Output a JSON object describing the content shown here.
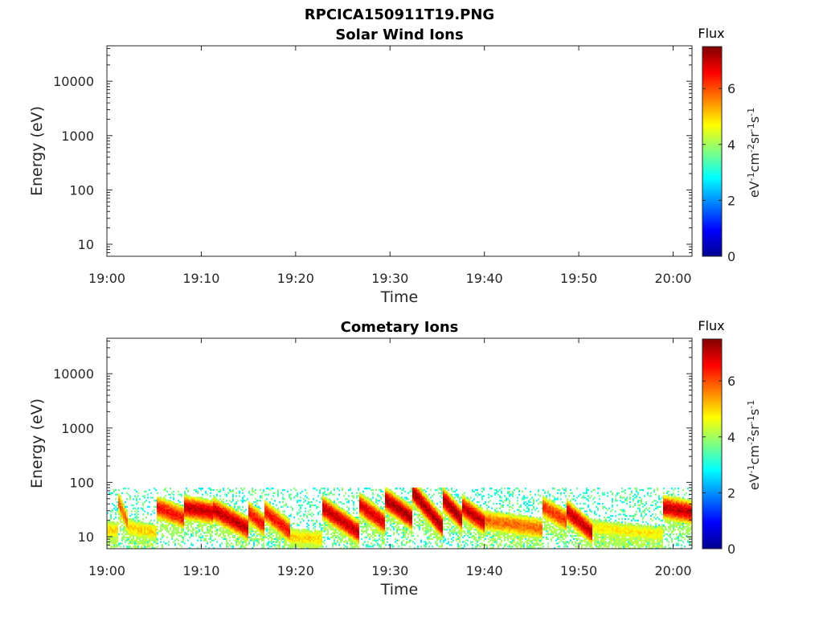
{
  "figure": {
    "title": "RPCICA150911T19.PNG"
  },
  "colors": {
    "background": "#ffffff",
    "axis": "#262626",
    "colormap": [
      "#00008f",
      "#0000ff",
      "#0080ff",
      "#00ffff",
      "#80ff80",
      "#ffff00",
      "#ff8000",
      "#ff0000",
      "#800000"
    ]
  },
  "chart_data": [
    {
      "type": "heatmap",
      "title": "Solar Wind Ions",
      "xlabel": "Time",
      "ylabel": "Energy (eV)",
      "x_range": [
        "19:00",
        "20:02"
      ],
      "x_ticks": [
        "19:00",
        "19:10",
        "19:20",
        "19:30",
        "19:40",
        "19:50",
        "20:00"
      ],
      "y_scale": "log",
      "y_range": [
        6,
        45000
      ],
      "y_ticks": [
        "10",
        "100",
        "1000",
        "10000"
      ],
      "colorbar": {
        "title": "Flux",
        "label_parts": [
          "eV",
          "-1",
          "cm",
          "-2",
          "sr",
          "-1",
          "s",
          "-1"
        ],
        "range": [
          0,
          7.5
        ],
        "ticks": [
          "0",
          "2",
          "4",
          "6"
        ]
      },
      "segments": []
    },
    {
      "type": "heatmap",
      "title": "Cometary Ions",
      "xlabel": "Time",
      "ylabel": "Energy (eV)",
      "x_range": [
        "19:00",
        "20:02"
      ],
      "x_ticks": [
        "19:00",
        "19:10",
        "19:20",
        "19:30",
        "19:40",
        "19:50",
        "20:00"
      ],
      "y_scale": "log",
      "y_range": [
        6,
        45000
      ],
      "y_ticks": [
        "10",
        "100",
        "1000",
        "10000"
      ],
      "colorbar": {
        "title": "Flux",
        "label_parts": [
          "eV",
          "-1",
          "cm",
          "-2",
          "sr",
          "-1",
          "s",
          "-1"
        ],
        "range": [
          0,
          7.5
        ],
        "ticks": [
          "0",
          "2",
          "4",
          "6"
        ]
      },
      "noise_upper_energy_ev": 80,
      "segments": [
        {
          "start": 0.0,
          "end": 1.2,
          "peak_start_ev": 13,
          "peak_end_ev": 13,
          "peak_flux": 5.0
        },
        {
          "start": 1.2,
          "end": 2.2,
          "peak_start_ev": 45,
          "peak_end_ev": 18,
          "peak_flux": 5.8
        },
        {
          "start": 2.2,
          "end": 5.3,
          "peak_start_ev": 15,
          "peak_end_ev": 12,
          "peak_flux": 5.0
        },
        {
          "start": 5.3,
          "end": 8.2,
          "peak_start_ev": 35,
          "peak_end_ev": 22,
          "peak_flux": 6.5
        },
        {
          "start": 8.2,
          "end": 11.2,
          "peak_start_ev": 35,
          "peak_end_ev": 28,
          "peak_flux": 7.0
        },
        {
          "start": 11.2,
          "end": 15.0,
          "peak_start_ev": 32,
          "peak_end_ev": 14,
          "peak_flux": 7.0
        },
        {
          "start": 15.0,
          "end": 16.7,
          "peak_start_ev": 28,
          "peak_end_ev": 16,
          "peak_flux": 6.5
        },
        {
          "start": 16.7,
          "end": 19.5,
          "peak_start_ev": 30,
          "peak_end_ev": 12,
          "peak_flux": 6.5
        },
        {
          "start": 19.5,
          "end": 22.8,
          "peak_start_ev": 10,
          "peak_end_ev": 9,
          "peak_flux": 5.0
        },
        {
          "start": 22.8,
          "end": 26.7,
          "peak_start_ev": 35,
          "peak_end_ev": 12,
          "peak_flux": 7.0
        },
        {
          "start": 26.7,
          "end": 29.4,
          "peak_start_ev": 40,
          "peak_end_ev": 18,
          "peak_flux": 6.8
        },
        {
          "start": 29.4,
          "end": 32.3,
          "peak_start_ev": 50,
          "peak_end_ev": 22,
          "peak_flux": 7.2
        },
        {
          "start": 32.3,
          "end": 35.6,
          "peak_start_ev": 70,
          "peak_end_ev": 15,
          "peak_flux": 7.2
        },
        {
          "start": 35.6,
          "end": 37.7,
          "peak_start_ev": 50,
          "peak_end_ev": 20,
          "peak_flux": 7.2
        },
        {
          "start": 37.7,
          "end": 40.0,
          "peak_start_ev": 35,
          "peak_end_ev": 18,
          "peak_flux": 7.0
        },
        {
          "start": 40.0,
          "end": 46.2,
          "peak_start_ev": 20,
          "peak_end_ev": 14,
          "peak_flux": 5.8
        },
        {
          "start": 46.2,
          "end": 48.7,
          "peak_start_ev": 35,
          "peak_end_ev": 20,
          "peak_flux": 6.2
        },
        {
          "start": 48.7,
          "end": 51.4,
          "peak_start_ev": 30,
          "peak_end_ev": 12,
          "peak_flux": 7.0
        },
        {
          "start": 51.4,
          "end": 58.9,
          "peak_start_ev": 15,
          "peak_end_ev": 11,
          "peak_flux": 4.8
        },
        {
          "start": 58.9,
          "end": 62.0,
          "peak_start_ev": 35,
          "peak_end_ev": 28,
          "peak_flux": 7.0
        }
      ]
    }
  ]
}
